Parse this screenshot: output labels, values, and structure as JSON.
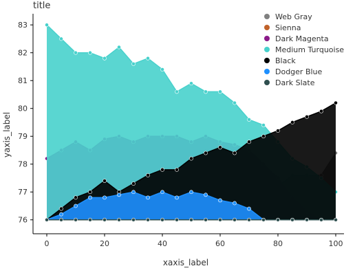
{
  "chart_data": {
    "type": "area",
    "title": "title",
    "xlabel": "xaxis_label",
    "ylabel": "yaxis_label",
    "xlim": [
      0,
      100
    ],
    "ylim": [
      75.5,
      83.4
    ],
    "x_ticks": [
      0,
      20,
      40,
      60,
      80,
      100
    ],
    "y_ticks": [
      76,
      77,
      78,
      79,
      80,
      81,
      82,
      83
    ],
    "grid": false,
    "legend_position": "top-right",
    "series": [
      {
        "name": "Web Gray",
        "color": "#808080",
        "points": [
          [
            0,
            76.0
          ],
          [
            5,
            76.4
          ],
          [
            10,
            76.6
          ],
          [
            15,
            76.0
          ],
          [
            20,
            76.6
          ],
          [
            25,
            76.8
          ],
          [
            30,
            76.2
          ],
          [
            35,
            76.6
          ],
          [
            40,
            76.8
          ],
          [
            45,
            77.1
          ],
          [
            50,
            76.7
          ],
          [
            55,
            77.2
          ],
          [
            60,
            77.5
          ],
          [
            65,
            76.8
          ],
          [
            70,
            77.3
          ],
          [
            75,
            77.6
          ],
          [
            80,
            77.2
          ],
          [
            85,
            77.6
          ],
          [
            90,
            77.6
          ],
          [
            95,
            77.6
          ],
          [
            100,
            78.4
          ]
        ]
      },
      {
        "name": "Sienna",
        "color": "#c0622a",
        "points": [
          [
            0,
            76.0
          ],
          [
            5,
            76.0
          ],
          [
            10,
            76.3
          ],
          [
            15,
            76.5
          ],
          [
            20,
            76.6
          ],
          [
            25,
            76.6
          ],
          [
            30,
            76.6
          ],
          [
            35,
            76.0
          ],
          [
            40,
            76.6
          ],
          [
            45,
            76.6
          ],
          [
            50,
            76.6
          ],
          [
            55,
            76.7
          ],
          [
            60,
            76.2
          ],
          [
            65,
            76.0
          ],
          [
            70,
            76.0
          ],
          [
            75,
            76.0
          ],
          [
            80,
            76.0
          ],
          [
            85,
            76.0
          ],
          [
            90,
            76.0
          ],
          [
            95,
            76.0
          ],
          [
            100,
            76.0
          ]
        ]
      },
      {
        "name": "Dark Magenta",
        "color": "#8b1a89",
        "points": [
          [
            0,
            78.2
          ],
          [
            5,
            78.5
          ],
          [
            10,
            78.8
          ],
          [
            15,
            78.5
          ],
          [
            20,
            78.9
          ],
          [
            25,
            79.0
          ],
          [
            30,
            78.8
          ],
          [
            35,
            79.0
          ],
          [
            40,
            79.0
          ],
          [
            45,
            79.0
          ],
          [
            50,
            78.8
          ],
          [
            55,
            79.0
          ],
          [
            60,
            78.8
          ],
          [
            65,
            78.7
          ],
          [
            70,
            78.5
          ],
          [
            75,
            78.0
          ],
          [
            80,
            77.5
          ],
          [
            85,
            76.8
          ],
          [
            90,
            76.3
          ],
          [
            95,
            76.0
          ],
          [
            100,
            76.0
          ]
        ]
      },
      {
        "name": "Medium Turquoise",
        "color": "#48d1cc",
        "points": [
          [
            0,
            83.0
          ],
          [
            5,
            82.5
          ],
          [
            10,
            82.0
          ],
          [
            15,
            82.0
          ],
          [
            20,
            81.8
          ],
          [
            25,
            82.2
          ],
          [
            30,
            81.6
          ],
          [
            35,
            81.8
          ],
          [
            40,
            81.4
          ],
          [
            45,
            80.6
          ],
          [
            50,
            80.9
          ],
          [
            55,
            80.6
          ],
          [
            60,
            80.6
          ],
          [
            65,
            80.2
          ],
          [
            70,
            79.6
          ],
          [
            75,
            79.4
          ],
          [
            80,
            78.8
          ],
          [
            85,
            78.2
          ],
          [
            90,
            77.9
          ],
          [
            95,
            77.5
          ],
          [
            100,
            77.0
          ]
        ]
      },
      {
        "name": "Black",
        "color": "#000000",
        "points": [
          [
            0,
            76.0
          ],
          [
            5,
            76.4
          ],
          [
            10,
            76.8
          ],
          [
            15,
            77.0
          ],
          [
            20,
            77.4
          ],
          [
            25,
            77.0
          ],
          [
            30,
            77.3
          ],
          [
            35,
            77.6
          ],
          [
            40,
            77.8
          ],
          [
            45,
            77.8
          ],
          [
            50,
            78.2
          ],
          [
            55,
            78.4
          ],
          [
            60,
            78.6
          ],
          [
            65,
            78.4
          ],
          [
            70,
            78.8
          ],
          [
            75,
            79.0
          ],
          [
            80,
            79.2
          ],
          [
            85,
            79.5
          ],
          [
            90,
            79.7
          ],
          [
            95,
            79.9
          ],
          [
            100,
            80.2
          ]
        ]
      },
      {
        "name": "Dodger Blue",
        "color": "#1e90ff",
        "points": [
          [
            0,
            76.0
          ],
          [
            5,
            76.2
          ],
          [
            10,
            76.5
          ],
          [
            15,
            76.8
          ],
          [
            20,
            76.8
          ],
          [
            25,
            76.9
          ],
          [
            30,
            77.0
          ],
          [
            35,
            76.8
          ],
          [
            40,
            77.0
          ],
          [
            45,
            76.8
          ],
          [
            50,
            77.0
          ],
          [
            55,
            76.9
          ],
          [
            60,
            76.7
          ],
          [
            65,
            76.6
          ],
          [
            70,
            76.4
          ],
          [
            75,
            76.0
          ],
          [
            80,
            76.0
          ],
          [
            85,
            76.0
          ],
          [
            90,
            76.0
          ],
          [
            95,
            76.0
          ],
          [
            100,
            76.0
          ]
        ]
      },
      {
        "name": "Dark Slate",
        "color": "#2f4f4f",
        "points": [
          [
            0,
            76.0
          ],
          [
            5,
            76.0
          ],
          [
            10,
            76.0
          ],
          [
            15,
            76.0
          ],
          [
            20,
            76.0
          ],
          [
            25,
            76.0
          ],
          [
            30,
            76.0
          ],
          [
            35,
            76.0
          ],
          [
            40,
            76.0
          ],
          [
            45,
            76.0
          ],
          [
            50,
            76.0
          ],
          [
            55,
            76.0
          ],
          [
            60,
            76.0
          ],
          [
            65,
            76.0
          ],
          [
            70,
            76.0
          ],
          [
            75,
            76.0
          ],
          [
            80,
            76.0
          ],
          [
            85,
            76.0
          ],
          [
            90,
            76.0
          ],
          [
            95,
            76.0
          ],
          [
            100,
            76.0
          ]
        ]
      }
    ]
  }
}
